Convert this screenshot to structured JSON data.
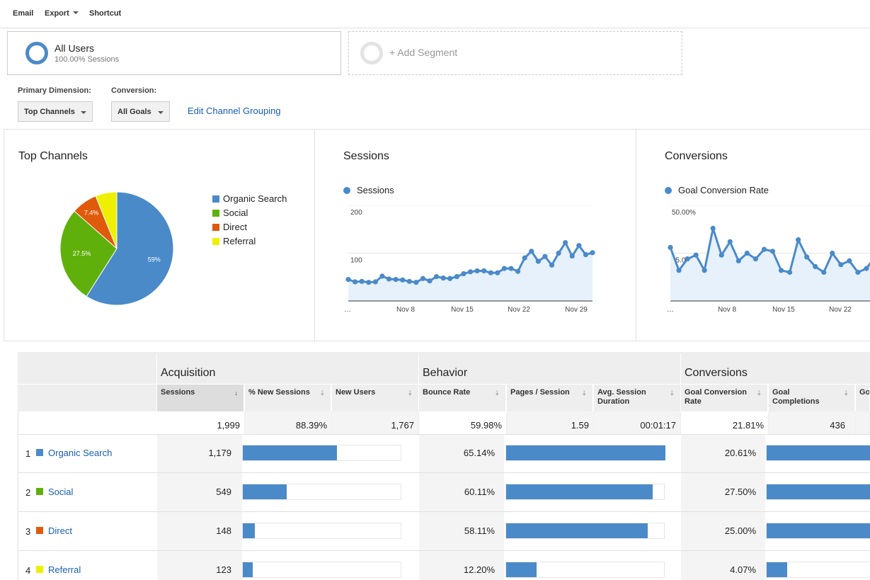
{
  "toolbar": {
    "email": "Email",
    "export": "Export",
    "shortcut": "Shortcut"
  },
  "segment": {
    "title": "All Users",
    "subtitle": "100.00% Sessions",
    "add_label": "+ Add Segment"
  },
  "controls": {
    "primary_dimension_label": "Primary Dimension:",
    "primary_dimension_value": "Top Channels",
    "conversion_label": "Conversion:",
    "conversion_value": "All Goals",
    "edit_channel_grouping": "Edit Channel Grouping"
  },
  "colors": {
    "organic": "#4a8ac9",
    "social": "#60b00b",
    "direct": "#e05a0c",
    "referral": "#eef000"
  },
  "chart_data": [
    {
      "type": "pie",
      "title": "Top Channels",
      "categories": [
        "Organic Search",
        "Social",
        "Direct",
        "Referral"
      ],
      "values": [
        59,
        27.5,
        7.4,
        6.1
      ],
      "labels": [
        "59%",
        "27.5%",
        "7.4%",
        ""
      ]
    },
    {
      "type": "line",
      "title": "Sessions",
      "series_name": "Sessions",
      "x_ticks": [
        "…",
        "Nov 8",
        "Nov 15",
        "Nov 22",
        "Nov 29"
      ],
      "y_ticks": [
        "100",
        "200"
      ],
      "ylim": [
        0,
        200
      ],
      "values": [
        45,
        40,
        41,
        39,
        40,
        52,
        46,
        45,
        44,
        41,
        39,
        47,
        42,
        51,
        48,
        47,
        51,
        57,
        61,
        63,
        63,
        59,
        59,
        68,
        68,
        62,
        90,
        104,
        83,
        93,
        75,
        100,
        122,
        94,
        116,
        97,
        101
      ]
    },
    {
      "type": "line",
      "title": "Conversions",
      "series_name": "Goal Conversion Rate",
      "x_ticks": [
        "…",
        "Nov 8",
        "Nov 15",
        "Nov 22"
      ],
      "y_ticks": [
        "25.00%",
        "50.00%"
      ],
      "ylim": [
        0,
        50
      ],
      "values": [
        28,
        16,
        22,
        24,
        16,
        38,
        24,
        31,
        21,
        25,
        22,
        27,
        26,
        16,
        15,
        32,
        23,
        18,
        15,
        25,
        19,
        21,
        15,
        17,
        23
      ]
    }
  ],
  "table": {
    "groups": [
      "Acquisition",
      "Behavior",
      "Conversions"
    ],
    "columns": [
      "Sessions",
      "% New Sessions",
      "New Users",
      "Bounce Rate",
      "Pages / Session",
      "Avg. Session Duration",
      "Goal Conversion Rate",
      "Goal Completions",
      "Goal Value"
    ],
    "sort_arrow": "↓",
    "sortable_arrow": "⇣",
    "totals": {
      "sessions": "1,999",
      "new_sessions": "88.39%",
      "new_users": "1,767",
      "bounce_rate": "59.98%",
      "pages_session": "1.59",
      "avg_duration": "00:01:17",
      "conv_rate": "21.81%",
      "completions": "436"
    },
    "rows": [
      {
        "num": "1",
        "name": "Organic Search",
        "sessions": "1,179",
        "sessions_pct": 59,
        "bounce": "65.14%",
        "bounce_frac": 1.0,
        "conv": "20.61%",
        "conv_frac": 1.0
      },
      {
        "num": "2",
        "name": "Social",
        "sessions": "549",
        "sessions_pct": 27.5,
        "bounce": "60.11%",
        "bounce_frac": 0.92,
        "conv": "27.50%",
        "conv_frac": 1.0
      },
      {
        "num": "3",
        "name": "Direct",
        "sessions": "148",
        "sessions_pct": 7.4,
        "bounce": "58.11%",
        "bounce_frac": 0.89,
        "conv": "25.00%",
        "conv_frac": 1.0
      },
      {
        "num": "4",
        "name": "Referral",
        "sessions": "123",
        "sessions_pct": 6.1,
        "bounce": "12.20%",
        "bounce_frac": 0.19,
        "conv": "4.07%",
        "conv_frac": 0.2
      }
    ]
  }
}
